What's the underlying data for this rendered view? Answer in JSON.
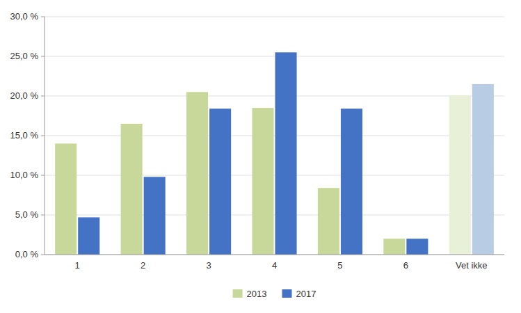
{
  "chart_data": {
    "type": "bar",
    "categories": [
      "1",
      "2",
      "3",
      "4",
      "5",
      "6",
      "Vet ikke"
    ],
    "series": [
      {
        "name": "2013",
        "color": "#c8d89a",
        "colors": [
          "#c8d89a",
          "#c8d89a",
          "#c8d89a",
          "#c8d89a",
          "#c8d89a",
          "#c8d89a",
          "#e8f0d8"
        ],
        "values": [
          0.14,
          0.165,
          0.205,
          0.185,
          0.084,
          0.02,
          0.201
        ]
      },
      {
        "name": "2017",
        "color": "#4472c4",
        "colors": [
          "#4472c4",
          "#4472c4",
          "#4472c4",
          "#4472c4",
          "#4472c4",
          "#4472c4",
          "#b8cce4"
        ],
        "values": [
          0.047,
          0.098,
          0.184,
          0.255,
          0.184,
          0.02,
          0.215
        ]
      }
    ],
    "ylim": [
      0,
      0.3
    ],
    "yticks": [
      {
        "value": 0.0,
        "label": "0,0 %"
      },
      {
        "value": 0.05,
        "label": "5,0 %"
      },
      {
        "value": 0.1,
        "label": "10,0 %"
      },
      {
        "value": 0.15,
        "label": "15,0 %"
      },
      {
        "value": 0.2,
        "label": "20,0 %"
      },
      {
        "value": 0.25,
        "label": "25,0 %"
      },
      {
        "value": 0.3,
        "label": "30,0 %"
      }
    ],
    "grid": true,
    "legend": "bottom"
  }
}
